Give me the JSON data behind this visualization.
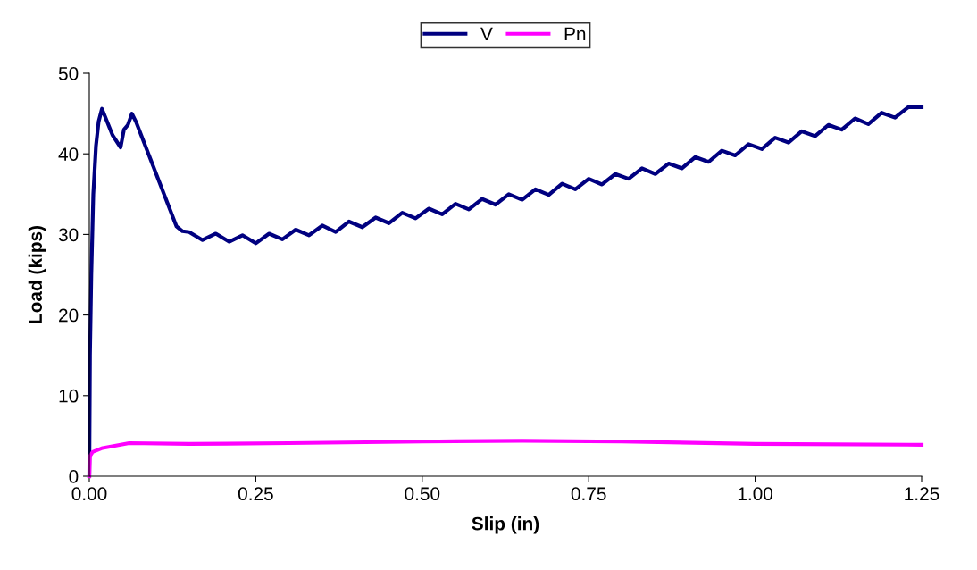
{
  "chart_data": {
    "type": "line",
    "xlabel": "Slip (in)",
    "ylabel": "Load (kips)",
    "xlim": [
      0,
      1.25
    ],
    "ylim": [
      0,
      50
    ],
    "xticks": [
      {
        "value": 0,
        "label": "0.00"
      },
      {
        "value": 0.25,
        "label": "0.25"
      },
      {
        "value": 0.5,
        "label": "0.50"
      },
      {
        "value": 0.75,
        "label": "0.75"
      },
      {
        "value": 1.0,
        "label": "1.00"
      },
      {
        "value": 1.25,
        "label": "1.25"
      }
    ],
    "yticks": [
      0,
      10,
      20,
      30,
      40,
      50
    ],
    "grid": false,
    "legend": "top",
    "marker": "none",
    "line_style": "solid",
    "series": [
      {
        "name": "V",
        "color": "#000080",
        "x": [
          0,
          0.001,
          0.003,
          0.006,
          0.01,
          0.014,
          0.019,
          0.035,
          0.047,
          0.052,
          0.058,
          0.064,
          0.07,
          0.131,
          0.14,
          0.15,
          0.17,
          0.19,
          0.21,
          0.23,
          0.25,
          0.27,
          0.29,
          0.31,
          0.33,
          0.35,
          0.37,
          0.39,
          0.41,
          0.43,
          0.45,
          0.47,
          0.49,
          0.51,
          0.53,
          0.55,
          0.57,
          0.59,
          0.61,
          0.63,
          0.65,
          0.67,
          0.69,
          0.71,
          0.73,
          0.75,
          0.77,
          0.79,
          0.81,
          0.83,
          0.85,
          0.87,
          0.89,
          0.91,
          0.93,
          0.95,
          0.97,
          0.99,
          1.01,
          1.03,
          1.05,
          1.07,
          1.09,
          1.11,
          1.13,
          1.15,
          1.17,
          1.19,
          1.21,
          1.23,
          1.25
        ],
        "values": [
          0,
          15,
          25,
          35,
          41,
          44,
          45.6,
          42.3,
          40.8,
          43.0,
          43.6,
          45.0,
          44.0,
          31.0,
          30.4,
          30.3,
          29.3,
          30.1,
          29.1,
          29.9,
          28.9,
          30.1,
          29.4,
          30.6,
          29.9,
          31.1,
          30.3,
          31.6,
          30.9,
          32.1,
          31.4,
          32.7,
          32.0,
          33.2,
          32.5,
          33.8,
          33.1,
          34.4,
          33.7,
          35.0,
          34.3,
          35.6,
          34.9,
          36.3,
          35.6,
          36.9,
          36.2,
          37.5,
          36.9,
          38.2,
          37.5,
          38.8,
          38.2,
          39.6,
          39.0,
          40.4,
          39.8,
          41.2,
          40.6,
          42.0,
          41.4,
          42.8,
          42.2,
          43.6,
          43.0,
          44.4,
          43.7,
          45.1,
          44.5,
          45.8,
          45.8
        ]
      },
      {
        "name": "Pn",
        "color": "#ff00ff",
        "x": [
          0,
          0.001,
          0.005,
          0.02,
          0.04,
          0.06,
          0.15,
          0.3,
          0.5,
          0.65,
          0.8,
          1.0,
          1.25
        ],
        "values": [
          0,
          2.5,
          3.0,
          3.5,
          3.8,
          4.1,
          4.0,
          4.1,
          4.3,
          4.4,
          4.3,
          4.0,
          3.9
        ]
      }
    ]
  }
}
